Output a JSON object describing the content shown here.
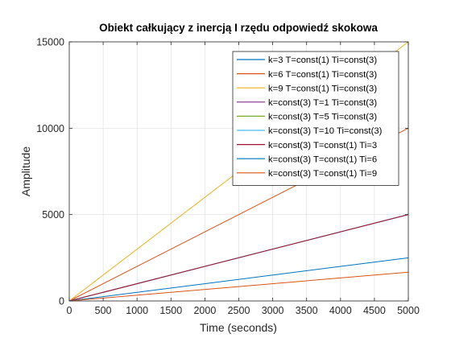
{
  "chart_data": {
    "type": "line",
    "title": "Obiekt całkujący z inercją I rzędu odpowiedź skokowa",
    "xlabel": "Time (seconds)",
    "ylabel": "Amplitude",
    "xlim": [
      0,
      5000
    ],
    "ylim": [
      0,
      15000
    ],
    "x_ticks": [
      0,
      500,
      1000,
      1500,
      2000,
      2500,
      3000,
      3500,
      4000,
      4500,
      5000
    ],
    "y_ticks": [
      0,
      5000,
      10000,
      15000
    ],
    "x_tick_labels": [
      "0",
      "500",
      "1000",
      "1500",
      "2000",
      "2500",
      "3000",
      "3500",
      "4000",
      "4500",
      "5000"
    ],
    "y_tick_labels": [
      "0",
      "5000",
      "10000",
      "15000"
    ],
    "grid": true,
    "legend_position": "top-right",
    "series": [
      {
        "name": "k=3 T=const(1) Ti=const(3)",
        "color": "#0072BD",
        "x": [
          0,
          5000
        ],
        "y": [
          0,
          5000
        ]
      },
      {
        "name": "k=6 T=const(1) Ti=const(3)",
        "color": "#D95319",
        "x": [
          0,
          5000
        ],
        "y": [
          0,
          10000
        ]
      },
      {
        "name": "k=9 T=const(1) Ti=const(3)",
        "color": "#EDB120",
        "x": [
          0,
          5000
        ],
        "y": [
          0,
          15000
        ]
      },
      {
        "name": "k=const(3) T=1 Ti=const(3)",
        "color": "#7E2F8E",
        "x": [
          0,
          5000
        ],
        "y": [
          0,
          5000
        ]
      },
      {
        "name": "k=const(3) T=5 Ti=const(3)",
        "color": "#77AC30",
        "x": [
          0,
          5000
        ],
        "y": [
          0,
          5000
        ]
      },
      {
        "name": "k=const(3) T=10 Ti=const(3)",
        "color": "#4DBEEE",
        "x": [
          0,
          5000
        ],
        "y": [
          0,
          5000
        ]
      },
      {
        "name": "k=const(3) T=const(1) Ti=3",
        "color": "#A2142F",
        "x": [
          0,
          5000
        ],
        "y": [
          0,
          5000
        ]
      },
      {
        "name": "k=const(3) T=const(1) Ti=6",
        "color": "#0072BD",
        "x": [
          0,
          5000
        ],
        "y": [
          0,
          2500
        ]
      },
      {
        "name": "k=const(3) T=const(1) Ti=9",
        "color": "#D95319",
        "x": [
          0,
          5000
        ],
        "y": [
          0,
          1667
        ]
      }
    ]
  }
}
